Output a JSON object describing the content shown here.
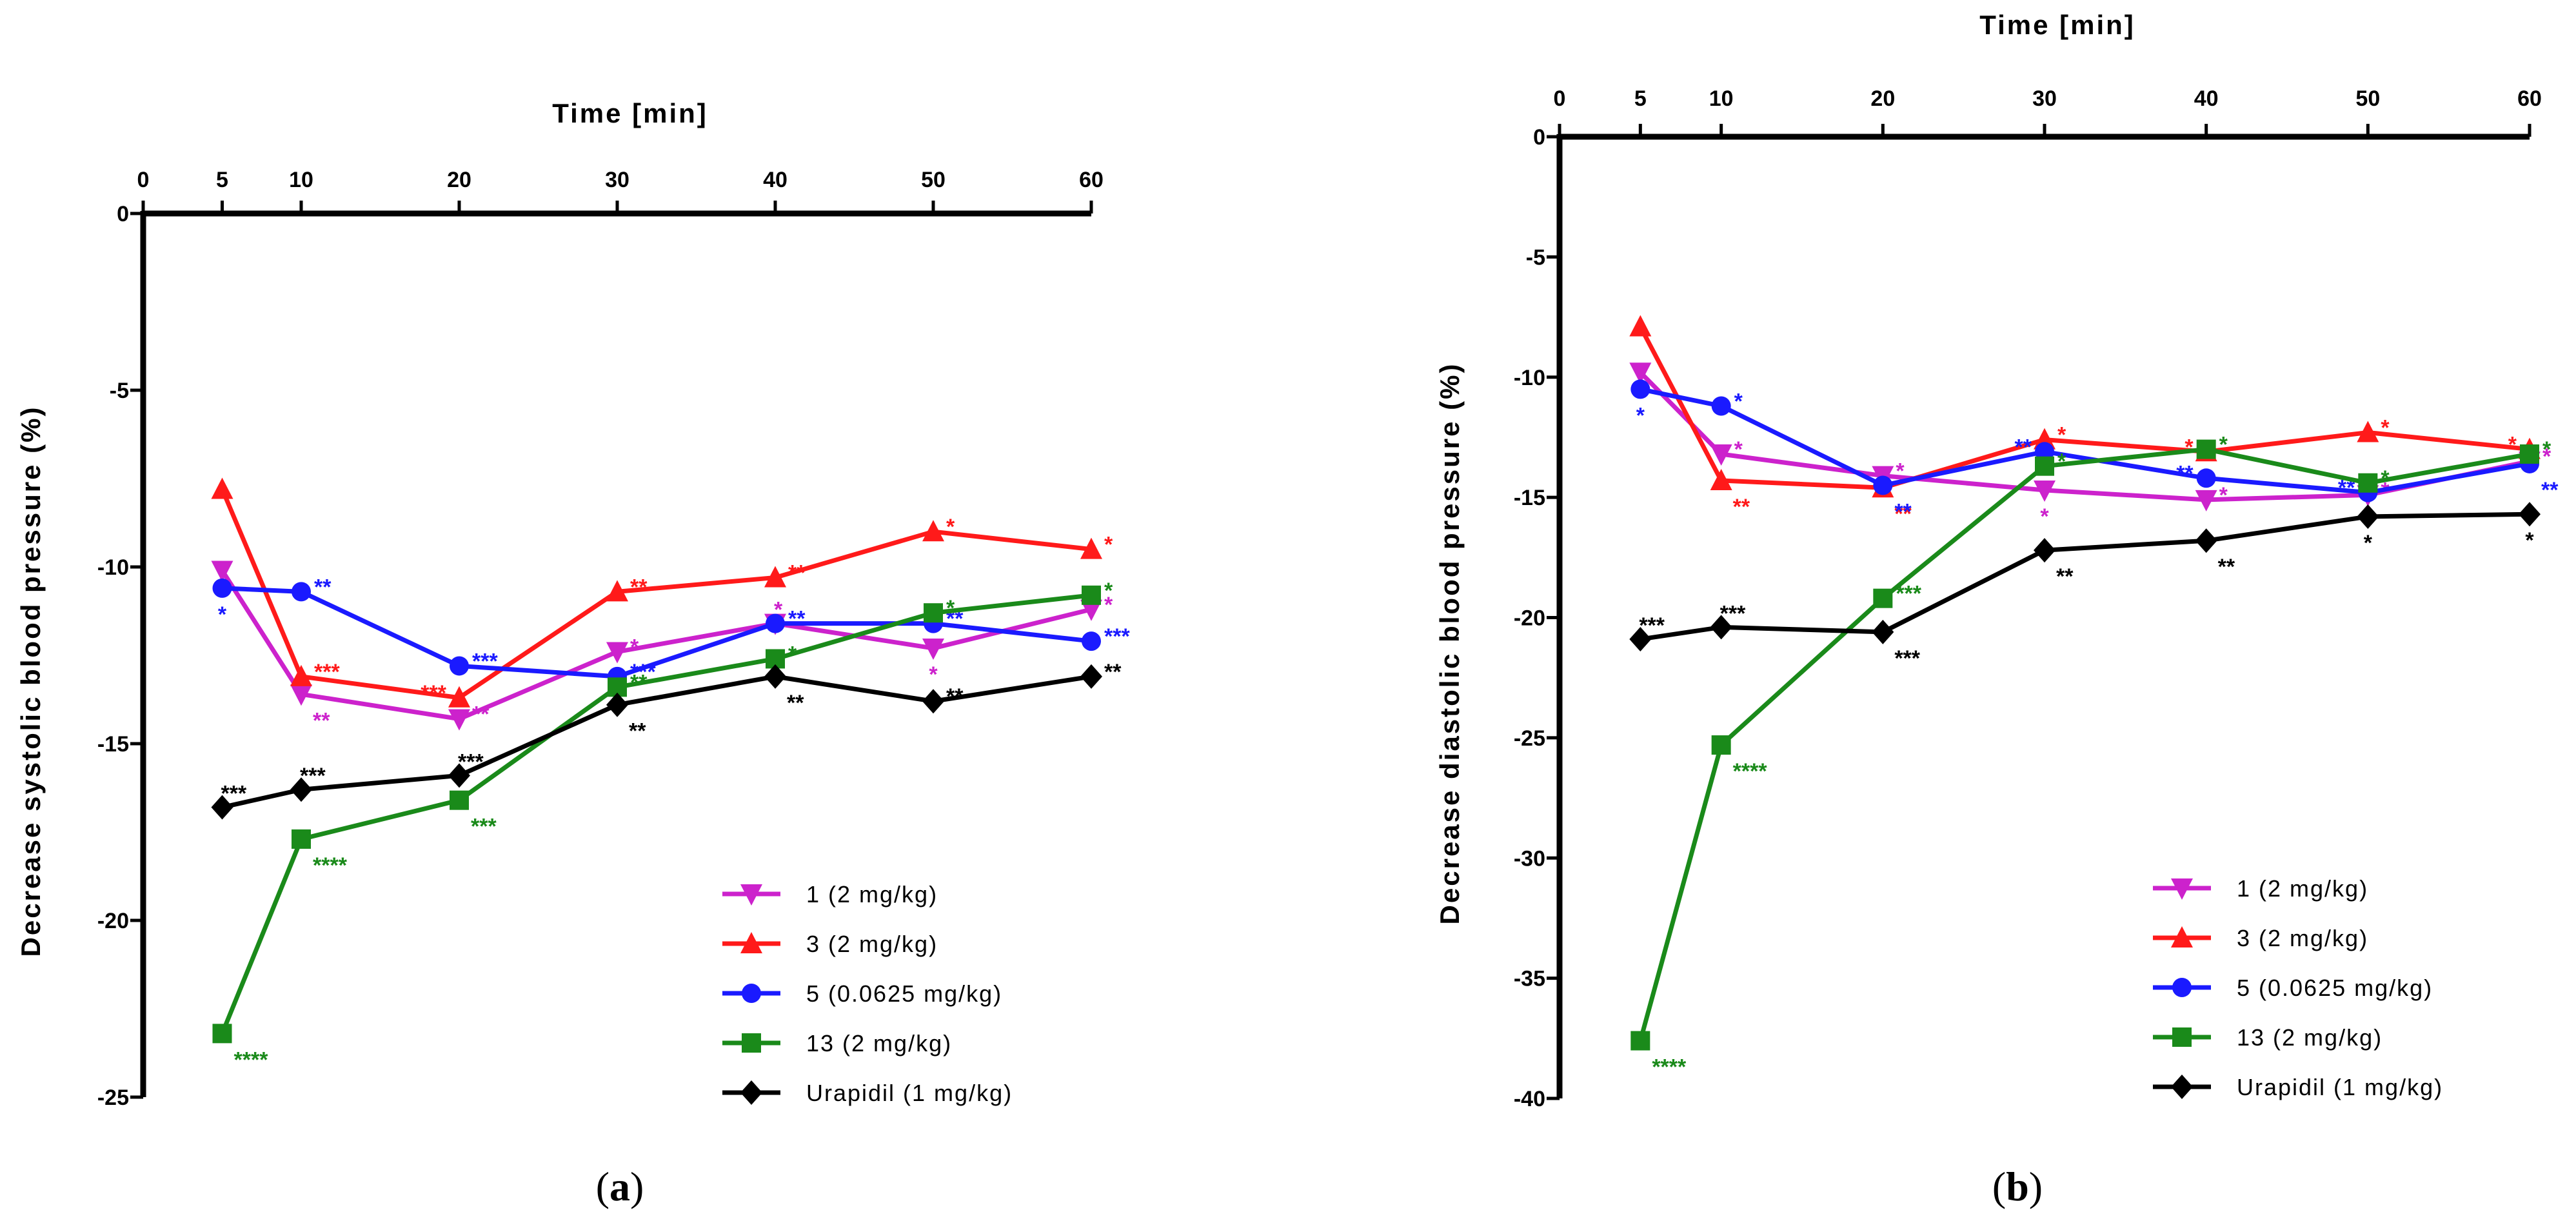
{
  "chart_data": [
    {
      "type": "line",
      "panel_label": "a",
      "xlabel": "Time [min]",
      "ylabel": "Decrease systolic blood pressure (%)",
      "xlim": [
        0,
        60
      ],
      "ylim": [
        -25,
        0
      ],
      "x_ticks": [
        0,
        5,
        10,
        20,
        30,
        40,
        50,
        60
      ],
      "y_ticks": [
        0,
        -5,
        -10,
        -15,
        -20,
        -25
      ],
      "x_axis_position": "top",
      "legend_position": "bottom-right",
      "series": [
        {
          "name": "1 (2 mg/kg)",
          "color": "#cc22cc",
          "marker": "triangle-down",
          "x": [
            5,
            10,
            20,
            30,
            40,
            50,
            60
          ],
          "y": [
            -10.1,
            -13.6,
            -14.3,
            -12.4,
            -11.6,
            -12.3,
            -11.2
          ],
          "sig": [
            "",
            "**",
            "**",
            "*",
            "*",
            "*",
            "*"
          ],
          "sig_pos": [
            "",
            "below",
            "right",
            "right",
            "above",
            "below",
            "right"
          ]
        },
        {
          "name": "3 (2 mg/kg)",
          "color": "#ff1a1a",
          "marker": "triangle-up",
          "x": [
            5,
            10,
            20,
            30,
            40,
            50,
            60
          ],
          "y": [
            -7.8,
            -13.1,
            -13.7,
            -10.7,
            -10.3,
            -9.0,
            -9.5
          ],
          "sig": [
            "",
            "***",
            "***",
            "**",
            "**",
            "*",
            "*"
          ],
          "sig_pos": [
            "",
            "right",
            "left",
            "right",
            "right",
            "right",
            "right"
          ]
        },
        {
          "name": "5 (0.0625 mg/kg)",
          "color": "#1a1aff",
          "marker": "circle",
          "x": [
            5,
            10,
            20,
            30,
            40,
            50,
            60
          ],
          "y": [
            -10.6,
            -10.7,
            -12.8,
            -13.1,
            -11.6,
            -11.6,
            -12.1
          ],
          "sig": [
            "*",
            "**",
            "***",
            "***",
            "**",
            "**",
            "***"
          ],
          "sig_pos": [
            "below",
            "right",
            "right",
            "right",
            "right",
            "right",
            "right"
          ]
        },
        {
          "name": "13 (2 mg/kg)",
          "color": "#1a8a1a",
          "marker": "square",
          "x": [
            5,
            10,
            20,
            30,
            40,
            50,
            60
          ],
          "y": [
            -23.2,
            -17.7,
            -16.6,
            -13.4,
            -12.6,
            -11.3,
            -10.8
          ],
          "sig": [
            "****",
            "****",
            "***",
            "**",
            "*",
            "*",
            "*"
          ],
          "sig_pos": [
            "below",
            "below",
            "below",
            "right",
            "right",
            "right",
            "right"
          ]
        },
        {
          "name": "Urapidil (1 mg/kg)",
          "color": "#000000",
          "marker": "diamond",
          "x": [
            5,
            10,
            20,
            30,
            40,
            50,
            60
          ],
          "y": [
            -16.8,
            -16.3,
            -15.9,
            -13.9,
            -13.1,
            -13.8,
            -13.1
          ],
          "sig": [
            "***",
            "***",
            "***",
            "**",
            "**",
            "**",
            "**"
          ],
          "sig_pos": [
            "above",
            "above",
            "above",
            "below",
            "below",
            "right",
            "right"
          ]
        }
      ]
    },
    {
      "type": "line",
      "panel_label": "b",
      "xlabel": "Time [min]",
      "ylabel": "Decrease diastolic blood pressure (%)",
      "xlim": [
        0,
        60
      ],
      "ylim": [
        -40,
        0
      ],
      "x_ticks": [
        0,
        5,
        10,
        20,
        30,
        40,
        50,
        60
      ],
      "y_ticks": [
        0,
        -5,
        -10,
        -15,
        -20,
        -25,
        -30,
        -35,
        -40
      ],
      "x_axis_position": "top",
      "legend_position": "bottom-right",
      "series": [
        {
          "name": "1 (2 mg/kg)",
          "color": "#cc22cc",
          "marker": "triangle-down",
          "x": [
            5,
            10,
            20,
            30,
            40,
            50,
            60
          ],
          "y": [
            -9.8,
            -13.2,
            -14.1,
            -14.7,
            -15.1,
            -14.9,
            -13.5
          ],
          "sig": [
            "",
            "*",
            "*",
            "*",
            "*",
            "*",
            "*"
          ],
          "sig_pos": [
            "",
            "right",
            "right",
            "below",
            "right",
            "right",
            "right"
          ]
        },
        {
          "name": "3 (2 mg/kg)",
          "color": "#ff1a1a",
          "marker": "triangle-up",
          "x": [
            5,
            10,
            20,
            30,
            40,
            50,
            60
          ],
          "y": [
            -7.9,
            -14.3,
            -14.6,
            -12.6,
            -13.1,
            -12.3,
            -13.0
          ],
          "sig": [
            "",
            "**",
            "**",
            "*",
            "*",
            "*",
            "*"
          ],
          "sig_pos": [
            "",
            "below",
            "below",
            "right",
            "left",
            "right",
            "left"
          ]
        },
        {
          "name": "5 (0.0625 mg/kg)",
          "color": "#1a1aff",
          "marker": "circle",
          "x": [
            5,
            10,
            20,
            30,
            40,
            50,
            60
          ],
          "y": [
            -10.5,
            -11.2,
            -14.5,
            -13.1,
            -14.2,
            -14.8,
            -13.6
          ],
          "sig": [
            "*",
            "*",
            "**",
            "**",
            "**",
            "**",
            "**"
          ],
          "sig_pos": [
            "below",
            "right",
            "below",
            "left",
            "left",
            "left",
            "below"
          ]
        },
        {
          "name": "13 (2 mg/kg)",
          "color": "#1a8a1a",
          "marker": "square",
          "x": [
            5,
            10,
            20,
            30,
            40,
            50,
            60
          ],
          "y": [
            -37.6,
            -25.3,
            -19.2,
            -13.7,
            -13.0,
            -14.4,
            -13.2
          ],
          "sig": [
            "****",
            "****",
            "***",
            "*",
            "*",
            "*",
            "*"
          ],
          "sig_pos": [
            "below",
            "below",
            "right",
            "right",
            "right",
            "right",
            "right"
          ]
        },
        {
          "name": "Urapidil (1 mg/kg)",
          "color": "#000000",
          "marker": "diamond",
          "x": [
            5,
            10,
            20,
            30,
            40,
            50,
            60
          ],
          "y": [
            -20.9,
            -20.4,
            -20.6,
            -17.2,
            -16.8,
            -15.8,
            -15.7
          ],
          "sig": [
            "***",
            "***",
            "***",
            "**",
            "**",
            "*",
            "*"
          ],
          "sig_pos": [
            "above",
            "above",
            "below",
            "below",
            "below",
            "below",
            "below"
          ]
        }
      ]
    }
  ]
}
